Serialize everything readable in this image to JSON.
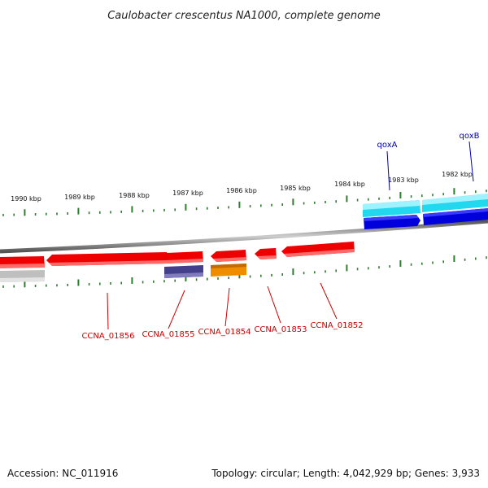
{
  "title": "Caulobacter crescentus NA1000, complete genome",
  "footer": {
    "accession": "Accession: NC_011916",
    "summary": "Topology: circular; Length: 4,042,929 bp; Genes: 3,933"
  },
  "scale_labels": [
    "1990 kbp",
    "1989 kbp",
    "1988 kbp",
    "1987 kbp",
    "1986 kbp",
    "1985 kbp",
    "1984 kbp",
    "1983 kbp",
    "1982 kbp"
  ],
  "labels_top": [
    "qoxA",
    "qoxB"
  ],
  "labels_bottom": [
    "CCNA_01856",
    "CCNA_01855",
    "CCNA_01854",
    "CCNA_01853",
    "CCNA_01852"
  ],
  "colors": {
    "backbone": "#7a7a7a",
    "gene_red": "#ee0000",
    "cyan": "#22d8ee",
    "blue": "#0000dd",
    "purple": "#443f8a",
    "orange": "#f08c00",
    "grey_feature": "#bfbfbf",
    "tick": "#2e7d2e",
    "label_red": "#cc0000",
    "label_blue": "#0000aa"
  }
}
